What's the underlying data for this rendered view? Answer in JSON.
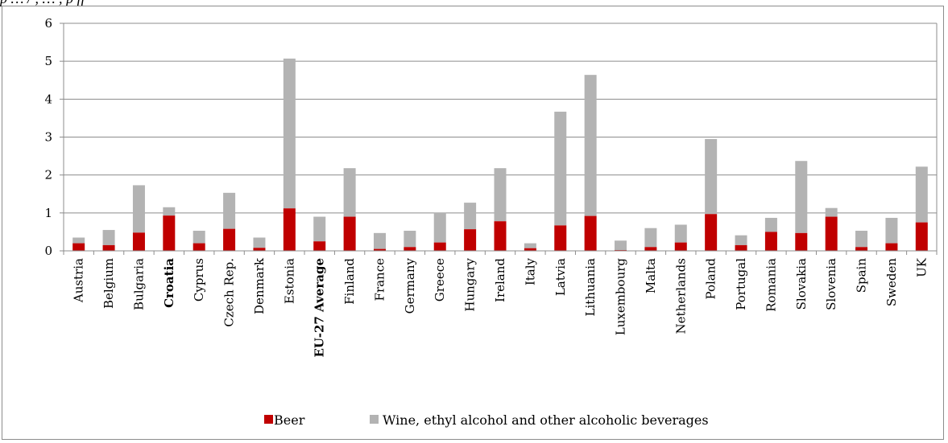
{
  "caption": "p   … / , … , p     ff",
  "chart_data": {
    "type": "bar",
    "stacked": true,
    "categories": [
      "Austria",
      "Belgium",
      "Bulgaria",
      "Croatia",
      "Cyprus",
      "Czech Rep.",
      "Denmark",
      "Estonia",
      "EU-27 Average",
      "Finland",
      "France",
      "Germany",
      "Greece",
      "Hungary",
      "Ireland",
      "Italy",
      "Latvia",
      "Lithuania",
      "Luxembourg",
      "Malta",
      "Netherlands",
      "Poland",
      "Portugal",
      "Romania",
      "Slovakia",
      "Slovenia",
      "Spain",
      "Sweden",
      "UK"
    ],
    "bold_categories": [
      "Croatia",
      "EU-27 Average"
    ],
    "series": [
      {
        "name": "Beer",
        "color": "#c00000",
        "values": [
          0.2,
          0.15,
          0.48,
          0.93,
          0.2,
          0.58,
          0.08,
          1.12,
          0.25,
          0.9,
          0.05,
          0.1,
          0.22,
          0.57,
          0.78,
          0.07,
          0.67,
          0.92,
          0.02,
          0.1,
          0.22,
          0.97,
          0.15,
          0.5,
          0.47,
          0.9,
          0.1,
          0.2,
          0.75
        ]
      },
      {
        "name": "Wine, ethyl alcohol and other alcoholic beverages",
        "color": "#b3b3b3",
        "values": [
          0.15,
          0.4,
          1.25,
          0.22,
          0.33,
          0.95,
          0.27,
          3.95,
          0.65,
          1.28,
          0.42,
          0.43,
          0.78,
          0.7,
          1.4,
          0.13,
          3.0,
          3.72,
          0.25,
          0.5,
          0.47,
          1.98,
          0.26,
          0.37,
          1.9,
          0.23,
          0.43,
          0.67,
          1.47
        ]
      }
    ],
    "ylim": [
      0,
      6
    ],
    "yticks": [
      "0",
      "1",
      "2",
      "3",
      "4",
      "5",
      "6"
    ],
    "grid": true,
    "legend_position": "bottom"
  }
}
